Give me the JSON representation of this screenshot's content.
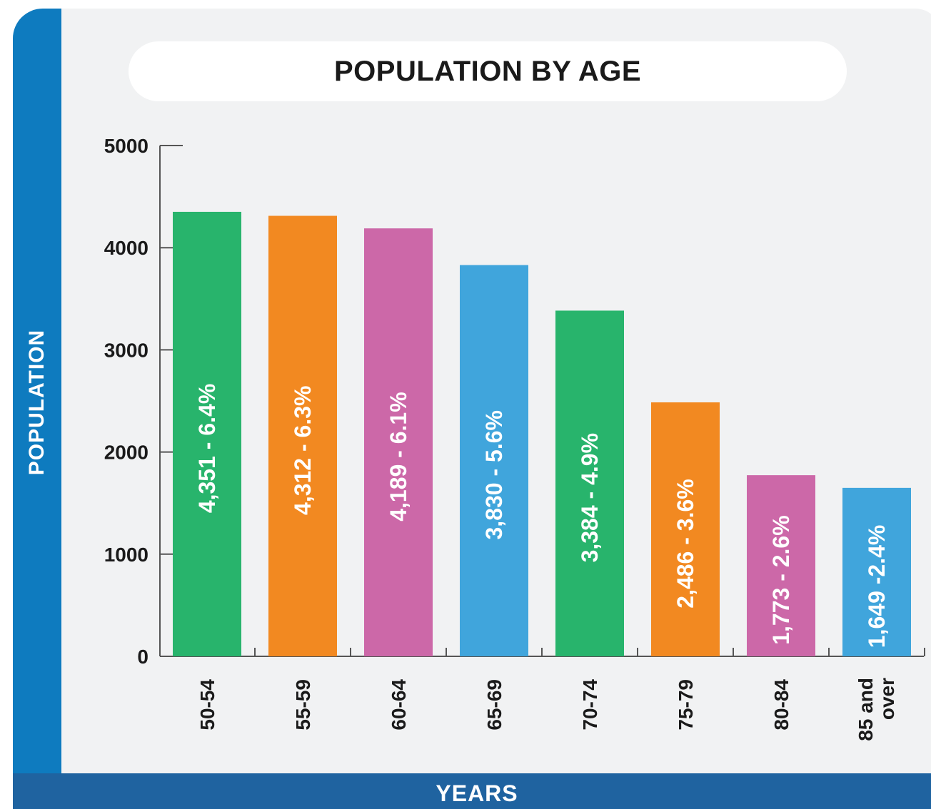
{
  "colors": {
    "side_band": "#0e7bbf",
    "bottom_band": "#1f63a0",
    "background": "#f1f2f3",
    "green": "#28b46c",
    "orange": "#f28921",
    "pink": "#cc68a8",
    "blue": "#40a5dc",
    "axis": "#555555"
  },
  "chart_data": {
    "type": "bar",
    "title": "POPULATION BY AGE",
    "xlabel": "YEARS",
    "ylabel": "POPULATION",
    "ylim": [
      0,
      5000
    ],
    "yticks": [
      "0",
      "1000",
      "2000",
      "3000",
      "4000",
      "5000"
    ],
    "categories": [
      "50-54",
      "55-59",
      "60-64",
      "65-69",
      "70-74",
      "75-79",
      "80-84",
      "85 and over"
    ],
    "values": [
      4351,
      4312,
      4189,
      3830,
      3384,
      2486,
      1773,
      1649
    ],
    "data_labels": [
      "4,351 - 6.4%",
      "4,312 - 6.3%",
      "4,189 - 6.1%",
      "3,830 - 5.6%",
      "3,384 - 4.9%",
      "2,486 - 3.6%",
      "1,773 - 2.6%",
      "1,649 -2.4%"
    ],
    "bar_colors": [
      "#28b46c",
      "#f28921",
      "#cc68a8",
      "#40a5dc",
      "#28b46c",
      "#f28921",
      "#cc68a8",
      "#40a5dc"
    ],
    "grid": false,
    "legend": "none"
  }
}
